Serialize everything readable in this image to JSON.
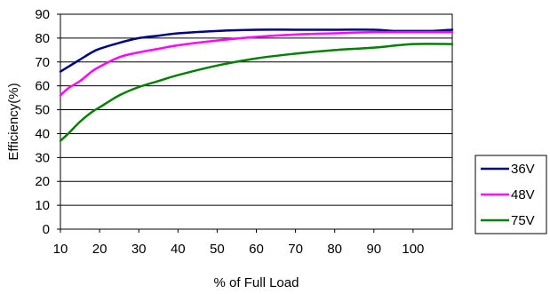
{
  "chart_data": {
    "type": "line",
    "xlabel": "% of Full Load",
    "ylabel": "Efficiency(%)",
    "xlim": [
      10,
      110
    ],
    "ylim": [
      0,
      90
    ],
    "x_ticks": [
      10,
      20,
      30,
      40,
      50,
      60,
      70,
      80,
      90,
      100
    ],
    "y_ticks": [
      0,
      10,
      20,
      30,
      40,
      50,
      60,
      70,
      80,
      90
    ],
    "grid": true,
    "legend_position": "right",
    "series": [
      {
        "name": "36V",
        "color": "#000080",
        "x": [
          10,
          12,
          15,
          18,
          20,
          25,
          30,
          35,
          40,
          50,
          60,
          70,
          80,
          90,
          95,
          100,
          105,
          110
        ],
        "y": [
          66,
          68,
          71,
          74,
          75.5,
          78,
          80,
          81,
          82,
          83,
          83.5,
          83.5,
          83.5,
          83.5,
          83,
          83,
          83,
          83.5
        ]
      },
      {
        "name": "48V",
        "color": "#ff00ff",
        "x": [
          10,
          12,
          15,
          18,
          20,
          25,
          30,
          35,
          40,
          50,
          60,
          70,
          80,
          90,
          100,
          110
        ],
        "y": [
          56,
          59,
          62,
          66,
          68,
          72,
          74,
          75.5,
          77,
          79,
          80.5,
          81.5,
          82,
          82.5,
          82.5,
          82.5
        ]
      },
      {
        "name": "75V",
        "color": "#008000",
        "x": [
          10,
          12,
          15,
          18,
          20,
          25,
          30,
          35,
          40,
          50,
          60,
          70,
          80,
          90,
          100,
          110
        ],
        "y": [
          37,
          40,
          45,
          49,
          51,
          56,
          59.5,
          62,
          64.5,
          68.5,
          71.5,
          73.5,
          75,
          76,
          77.5,
          77.5
        ]
      }
    ]
  }
}
